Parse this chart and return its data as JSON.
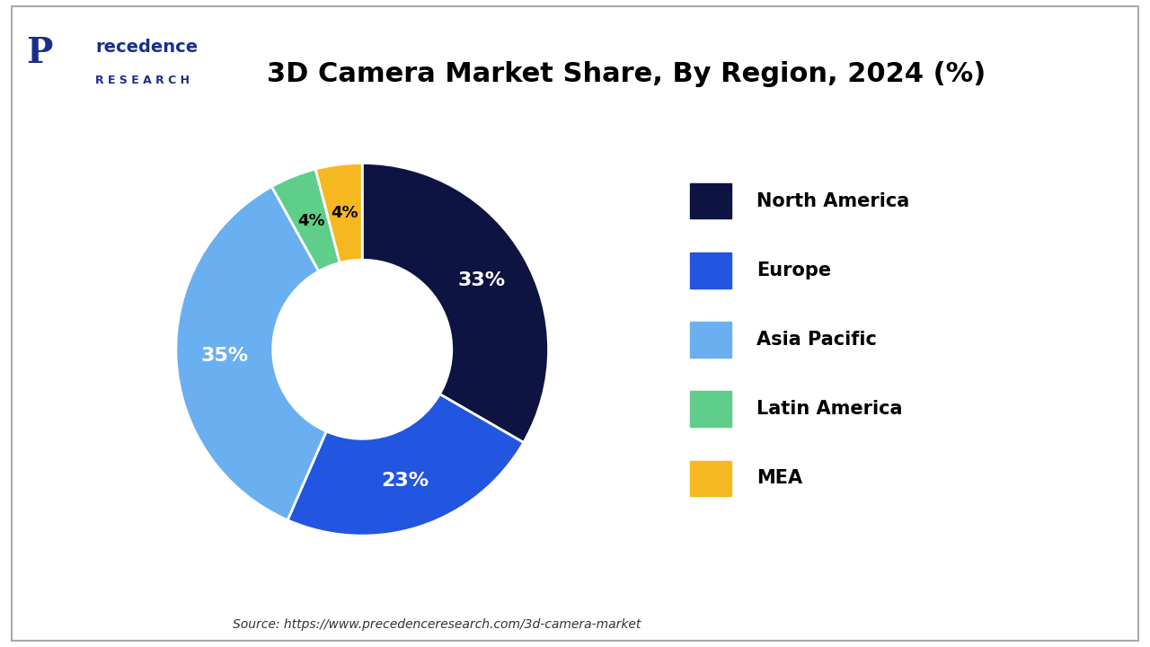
{
  "title": "3D Camera Market Share, By Region, 2024 (%)",
  "title_fontsize": 22,
  "labels": [
    "North America",
    "Europe",
    "Asia Pacific",
    "Latin America",
    "MEA"
  ],
  "values": [
    33,
    23,
    35,
    4,
    4
  ],
  "colors": [
    "#0d1442",
    "#2255e0",
    "#6ab0f0",
    "#5fce8a",
    "#f5b820"
  ],
  "pct_colors": [
    "white",
    "white",
    "white",
    "black",
    "black"
  ],
  "source_text": "Source: https://www.precedenceresearch.com/3d-camera-market",
  "background_color": "#ffffff",
  "border_color": "#cccccc",
  "logo_main_color": "#1a2e8a"
}
